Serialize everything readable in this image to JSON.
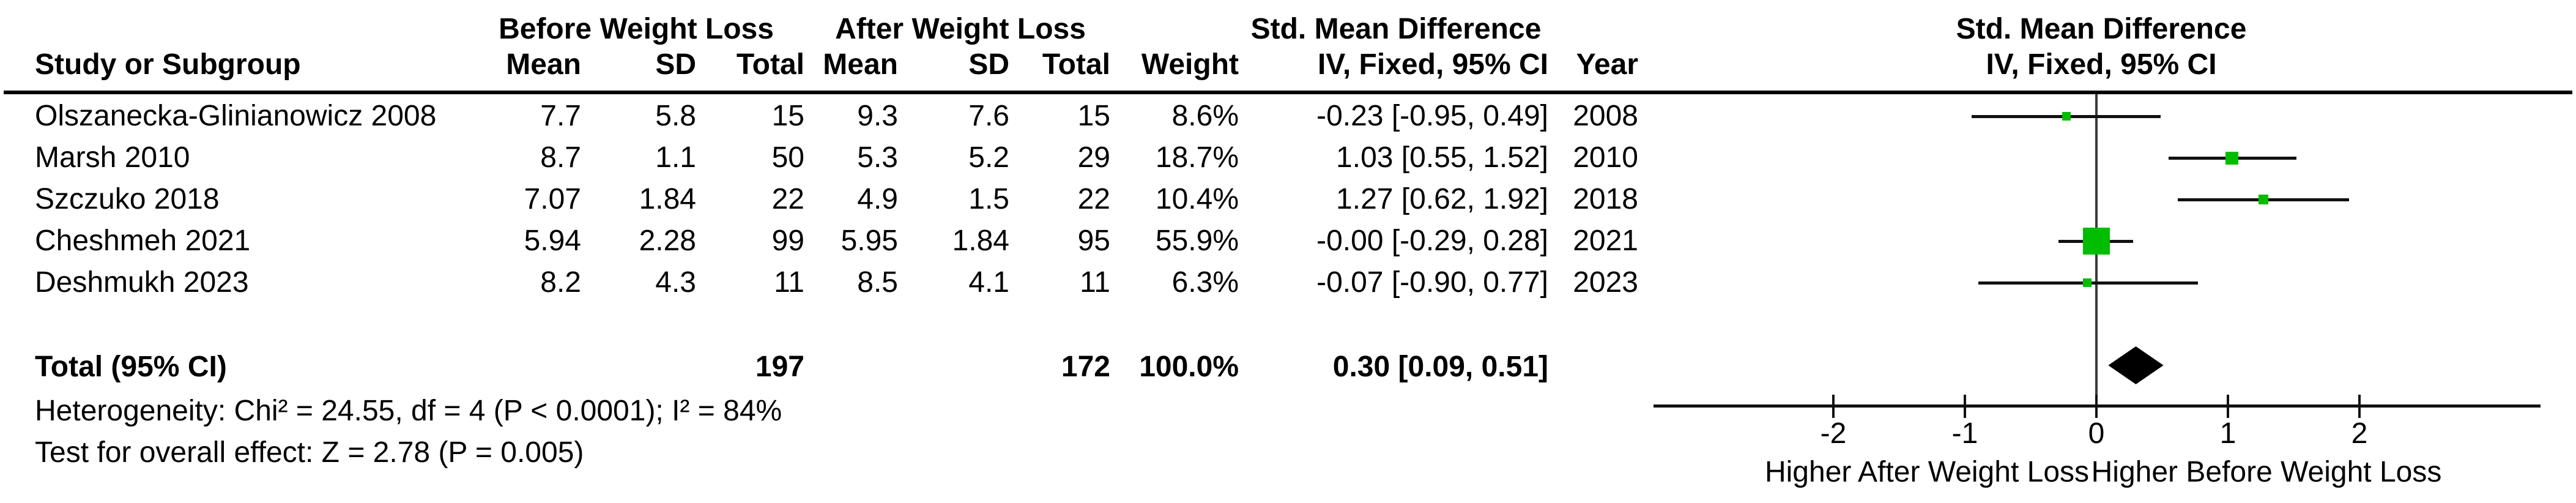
{
  "table": {
    "group_headers": {
      "before": "Before Weight Loss",
      "after": "After Weight Loss",
      "smd_table": "Std. Mean Difference",
      "smd_plot": "Std. Mean Difference"
    },
    "col_headers": {
      "study": "Study or Subgroup",
      "mean_before": "Mean",
      "sd_before": "SD",
      "total_before": "Total",
      "mean_after": "Mean",
      "sd_after": "SD",
      "total_after": "Total",
      "weight": "Weight",
      "iv_table": "IV, Fixed, 95% CI",
      "year": "Year",
      "iv_plot": "IV, Fixed, 95% CI"
    },
    "rows": [
      {
        "name": "Olszanecka-Glinianowicz 2008",
        "m1": "7.7",
        "sd1": "5.8",
        "t1": "15",
        "m2": "9.3",
        "sd2": "7.6",
        "t2": "15",
        "w": "8.6%",
        "ci": "-0.23 [-0.95, 0.49]",
        "yr": "2008"
      },
      {
        "name": "Marsh 2010",
        "m1": "8.7",
        "sd1": "1.1",
        "t1": "50",
        "m2": "5.3",
        "sd2": "5.2",
        "t2": "29",
        "w": "18.7%",
        "ci": "1.03 [0.55, 1.52]",
        "yr": "2010"
      },
      {
        "name": "Szczuko 2018",
        "m1": "7.07",
        "sd1": "1.84",
        "t1": "22",
        "m2": "4.9",
        "sd2": "1.5",
        "t2": "22",
        "w": "10.4%",
        "ci": "1.27 [0.62, 1.92]",
        "yr": "2018"
      },
      {
        "name": "Cheshmeh 2021",
        "m1": "5.94",
        "sd1": "2.28",
        "t1": "99",
        "m2": "5.95",
        "sd2": "1.84",
        "t2": "95",
        "w": "55.9%",
        "ci": "-0.00 [-0.29, 0.28]",
        "yr": "2021"
      },
      {
        "name": "Deshmukh 2023",
        "m1": "8.2",
        "sd1": "4.3",
        "t1": "11",
        "m2": "8.5",
        "sd2": "4.1",
        "t2": "11",
        "w": "6.3%",
        "ci": "-0.07 [-0.90, 0.77]",
        "yr": "2023"
      }
    ],
    "total_row": {
      "label": "Total (95% CI)",
      "total_before": "197",
      "total_after": "172",
      "weight": "100.0%",
      "ci": "0.30 [0.09, 0.51]"
    },
    "footnotes": {
      "heterogeneity": "Heterogeneity: Chi² = 24.55, df = 4 (P < 0.0001); I² = 84%",
      "overall_effect": "Test for overall effect: Z = 2.78 (P = 0.005)"
    }
  },
  "chart_data": {
    "type": "forest",
    "title": "Std. Mean Difference",
    "subtitle": "IV, Fixed, 95% CI",
    "effect_model": "IV, Fixed, 95% CI",
    "studies": [
      {
        "name": "Olszanecka-Glinianowicz 2008",
        "year": 2008,
        "estimate": -0.23,
        "ci_low": -0.95,
        "ci_high": 0.49,
        "weight_pct": 8.6
      },
      {
        "name": "Marsh 2010",
        "year": 2010,
        "estimate": 1.03,
        "ci_low": 0.55,
        "ci_high": 1.52,
        "weight_pct": 18.7
      },
      {
        "name": "Szczuko 2018",
        "year": 2018,
        "estimate": 1.27,
        "ci_low": 0.62,
        "ci_high": 1.92,
        "weight_pct": 10.4
      },
      {
        "name": "Cheshmeh 2021",
        "year": 2021,
        "estimate": -0.0,
        "ci_low": -0.29,
        "ci_high": 0.28,
        "weight_pct": 55.9
      },
      {
        "name": "Deshmukh 2023",
        "year": 2023,
        "estimate": -0.07,
        "ci_low": -0.9,
        "ci_high": 0.77,
        "weight_pct": 6.3
      }
    ],
    "total": {
      "label": "Total (95% CI)",
      "estimate": 0.3,
      "ci_low": 0.09,
      "ci_high": 0.51
    },
    "axis": {
      "ticks": [
        -2,
        -1,
        0,
        1,
        2
      ],
      "xlim": [
        -3.37,
        3.38
      ],
      "left_label": "Higher After Weight Loss",
      "right_label": "Higher Before Weight Loss"
    },
    "marker_color": "#00bd00",
    "diamond_color": "#000000"
  }
}
